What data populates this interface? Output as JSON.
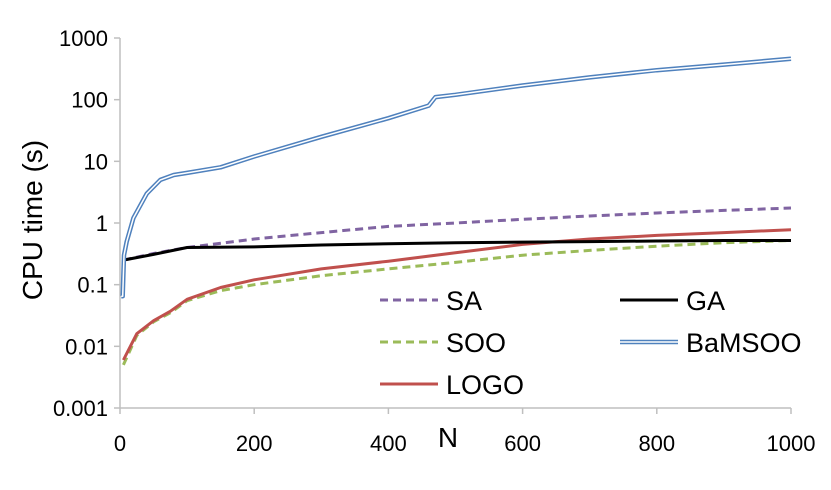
{
  "chart_data": {
    "type": "line",
    "title": "",
    "xlabel": "N",
    "ylabel": "CPU time (s)",
    "xlim": [
      0,
      1000
    ],
    "ylim": [
      0.001,
      1000
    ],
    "yscale": "log",
    "grid": false,
    "x_ticks": [
      "0",
      "200",
      "400",
      "600",
      "800",
      "1000"
    ],
    "y_ticks": [
      "0.001",
      "0.01",
      "0.1",
      "1",
      "10",
      "100",
      "1000"
    ],
    "legend_position": "lower-right",
    "series": [
      {
        "name": "SA",
        "color": "#8064A2",
        "style": "dashed",
        "x": [
          5,
          50,
          100,
          200,
          300,
          400,
          500,
          600,
          700,
          800,
          900,
          1000
        ],
        "y": [
          0.25,
          0.32,
          0.4,
          0.55,
          0.7,
          0.88,
          1.0,
          1.15,
          1.3,
          1.45,
          1.6,
          1.75
        ]
      },
      {
        "name": "GA",
        "color": "#000000",
        "style": "solid",
        "x": [
          5,
          50,
          100,
          200,
          300,
          400,
          500,
          600,
          700,
          800,
          900,
          1000
        ],
        "y": [
          0.25,
          0.31,
          0.4,
          0.41,
          0.44,
          0.46,
          0.48,
          0.49,
          0.5,
          0.51,
          0.52,
          0.52
        ]
      },
      {
        "name": "SOO",
        "color": "#9BBB59",
        "style": "dashed",
        "x": [
          5,
          25,
          50,
          75,
          100,
          150,
          200,
          300,
          400,
          500,
          600,
          700,
          800,
          900,
          1000
        ],
        "y": [
          0.005,
          0.015,
          0.025,
          0.035,
          0.055,
          0.08,
          0.1,
          0.14,
          0.18,
          0.23,
          0.3,
          0.36,
          0.42,
          0.48,
          0.52
        ]
      },
      {
        "name": "BaMSOO",
        "color": "#4F81BD",
        "style": "double",
        "x": [
          2,
          4,
          6,
          10,
          20,
          40,
          60,
          80,
          100,
          150,
          200,
          300,
          400,
          460,
          470,
          500,
          600,
          700,
          800,
          900,
          1000
        ],
        "y": [
          0.065,
          0.065,
          0.3,
          0.5,
          1.2,
          3.0,
          5.0,
          6.0,
          6.5,
          8.0,
          12.0,
          25.0,
          50.0,
          80.0,
          110.0,
          120.0,
          170.0,
          230.0,
          300.0,
          370.0,
          460.0
        ]
      },
      {
        "name": "LOGO",
        "color": "#C0504D",
        "style": "solid",
        "x": [
          5,
          25,
          50,
          75,
          100,
          150,
          200,
          300,
          400,
          500,
          600,
          700,
          800,
          900,
          1000
        ],
        "y": [
          0.006,
          0.016,
          0.026,
          0.037,
          0.058,
          0.09,
          0.12,
          0.18,
          0.24,
          0.33,
          0.45,
          0.55,
          0.63,
          0.7,
          0.78
        ]
      }
    ]
  }
}
